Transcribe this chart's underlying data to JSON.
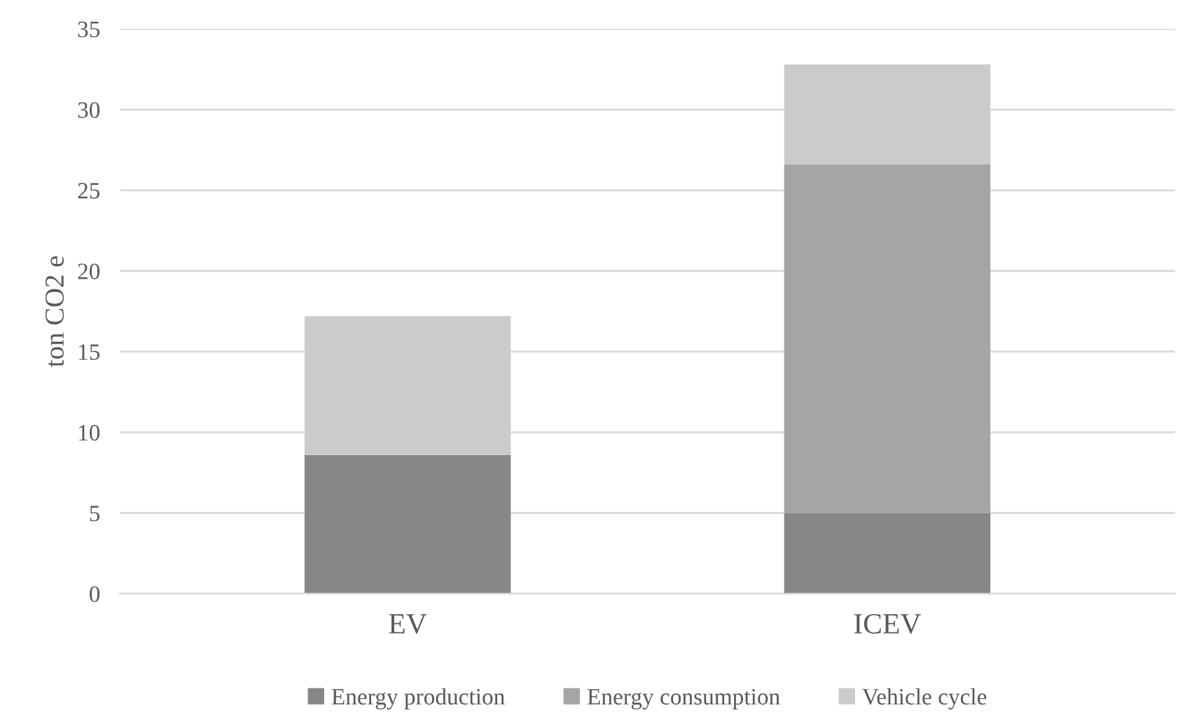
{
  "chart_data": {
    "type": "bar",
    "stacked": true,
    "ylabel": "ton CO2 e",
    "categories": [
      "EV",
      "ICEV"
    ],
    "series": [
      {
        "name": "Energy production",
        "color": "#878787",
        "values": [
          8.6,
          5.0
        ]
      },
      {
        "name": "Energy consumption",
        "color": "#a5a5a5",
        "values": [
          0,
          21.6
        ]
      },
      {
        "name": "Vehicle cycle",
        "color": "#cbcbcb",
        "values": [
          8.6,
          6.2
        ]
      }
    ],
    "ylim": [
      0,
      35
    ],
    "yticks": [
      0,
      5,
      10,
      15,
      20,
      25,
      30,
      35
    ],
    "grid": "y",
    "legend": "bottom"
  }
}
